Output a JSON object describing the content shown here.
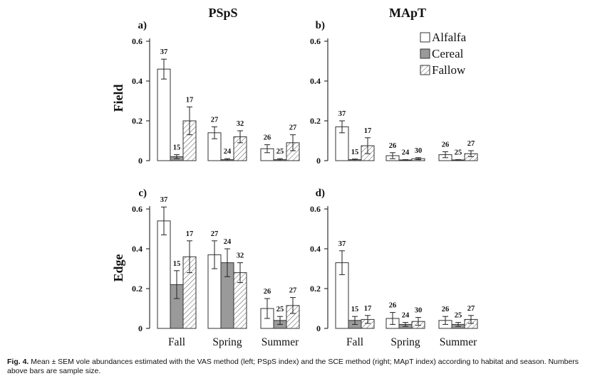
{
  "figure": {
    "col_titles": [
      "PSpS",
      "MApT"
    ],
    "row_labels": [
      "Field",
      "Edge"
    ],
    "legend": [
      {
        "label": "Alfalfa",
        "fill": "white"
      },
      {
        "label": "Cereal",
        "fill": "gray"
      },
      {
        "label": "Fallow",
        "fill": "hatch"
      }
    ],
    "colors": {
      "cereal": "#9a9a9a",
      "stroke": "#333333",
      "text": "#111111"
    }
  },
  "caption": {
    "label": "Fig. 4.",
    "text": "Mean ± SEM vole abundances estimated with the VAS method (left; PSpS index) and the SCE method (right; MApT index) according to habitat and season. Numbers above bars are sample size."
  },
  "chart_data": [
    {
      "type": "bar",
      "panel": "a)",
      "title": "PSpS",
      "ylabel": "Field",
      "xlabel": "",
      "categories": [
        "Fall",
        "Spring",
        "Summer"
      ],
      "show_categories": false,
      "ylim": [
        0,
        0.6
      ],
      "yticks": [
        "0",
        "0.2",
        "0.4",
        "0.6"
      ],
      "series": [
        {
          "name": "Alfalfa",
          "values": [
            0.46,
            0.14,
            0.06
          ],
          "sem": [
            0.05,
            0.03,
            0.02
          ],
          "n": [
            "37",
            "27",
            "26"
          ]
        },
        {
          "name": "Cereal",
          "values": [
            0.02,
            0.005,
            0.005
          ],
          "sem": [
            0.01,
            0.005,
            0.005
          ],
          "n": [
            "15",
            "24",
            "25"
          ]
        },
        {
          "name": "Fallow",
          "values": [
            0.2,
            0.12,
            0.09
          ],
          "sem": [
            0.07,
            0.03,
            0.04
          ],
          "n": [
            "17",
            "32",
            "27"
          ]
        }
      ]
    },
    {
      "type": "bar",
      "panel": "b)",
      "title": "MApT",
      "ylabel": "",
      "xlabel": "",
      "categories": [
        "Fall",
        "Spring",
        "Summer"
      ],
      "show_categories": false,
      "ylim": [
        0,
        0.6
      ],
      "yticks": [
        "0",
        "0.2",
        "0.4",
        "0.6"
      ],
      "series": [
        {
          "name": "Alfalfa",
          "values": [
            0.17,
            0.025,
            0.03
          ],
          "sem": [
            0.03,
            0.015,
            0.015
          ],
          "n": [
            "37",
            "26",
            "26"
          ]
        },
        {
          "name": "Cereal",
          "values": [
            0.005,
            0.003,
            0.003
          ],
          "sem": [
            0.003,
            0.002,
            0.002
          ],
          "n": [
            "15",
            "24",
            "25"
          ]
        },
        {
          "name": "Fallow",
          "values": [
            0.075,
            0.01,
            0.035
          ],
          "sem": [
            0.04,
            0.005,
            0.015
          ],
          "n": [
            "17",
            "30",
            "27"
          ]
        }
      ]
    },
    {
      "type": "bar",
      "panel": "c)",
      "title": "",
      "ylabel": "Edge",
      "xlabel": "",
      "categories": [
        "Fall",
        "Spring",
        "Summer"
      ],
      "show_categories": true,
      "ylim": [
        0,
        0.6
      ],
      "yticks": [
        "0",
        "0.2",
        "0.4",
        "0.6"
      ],
      "series": [
        {
          "name": "Alfalfa",
          "values": [
            0.54,
            0.37,
            0.1
          ],
          "sem": [
            0.07,
            0.07,
            0.05
          ],
          "n": [
            "37",
            "27",
            "26"
          ]
        },
        {
          "name": "Cereal",
          "values": [
            0.22,
            0.33,
            0.04
          ],
          "sem": [
            0.07,
            0.07,
            0.02
          ],
          "n": [
            "15",
            "24",
            "25"
          ]
        },
        {
          "name": "Fallow",
          "values": [
            0.36,
            0.28,
            0.115
          ],
          "sem": [
            0.08,
            0.05,
            0.04
          ],
          "n": [
            "17",
            "32",
            "27"
          ]
        }
      ]
    },
    {
      "type": "bar",
      "panel": "d)",
      "title": "",
      "ylabel": "",
      "xlabel": "",
      "categories": [
        "Fall",
        "Spring",
        "Summer"
      ],
      "show_categories": true,
      "ylim": [
        0,
        0.6
      ],
      "yticks": [
        "0",
        "0.2",
        "0.4",
        "0.6"
      ],
      "series": [
        {
          "name": "Alfalfa",
          "values": [
            0.33,
            0.05,
            0.04
          ],
          "sem": [
            0.06,
            0.03,
            0.02
          ],
          "n": [
            "37",
            "26",
            "26"
          ]
        },
        {
          "name": "Cereal",
          "values": [
            0.04,
            0.02,
            0.02
          ],
          "sem": [
            0.02,
            0.01,
            0.01
          ],
          "n": [
            "15",
            "24",
            "25"
          ]
        },
        {
          "name": "Fallow",
          "values": [
            0.045,
            0.035,
            0.045
          ],
          "sem": [
            0.02,
            0.02,
            0.02
          ],
          "n": [
            "17",
            "30",
            "27"
          ]
        }
      ]
    }
  ]
}
